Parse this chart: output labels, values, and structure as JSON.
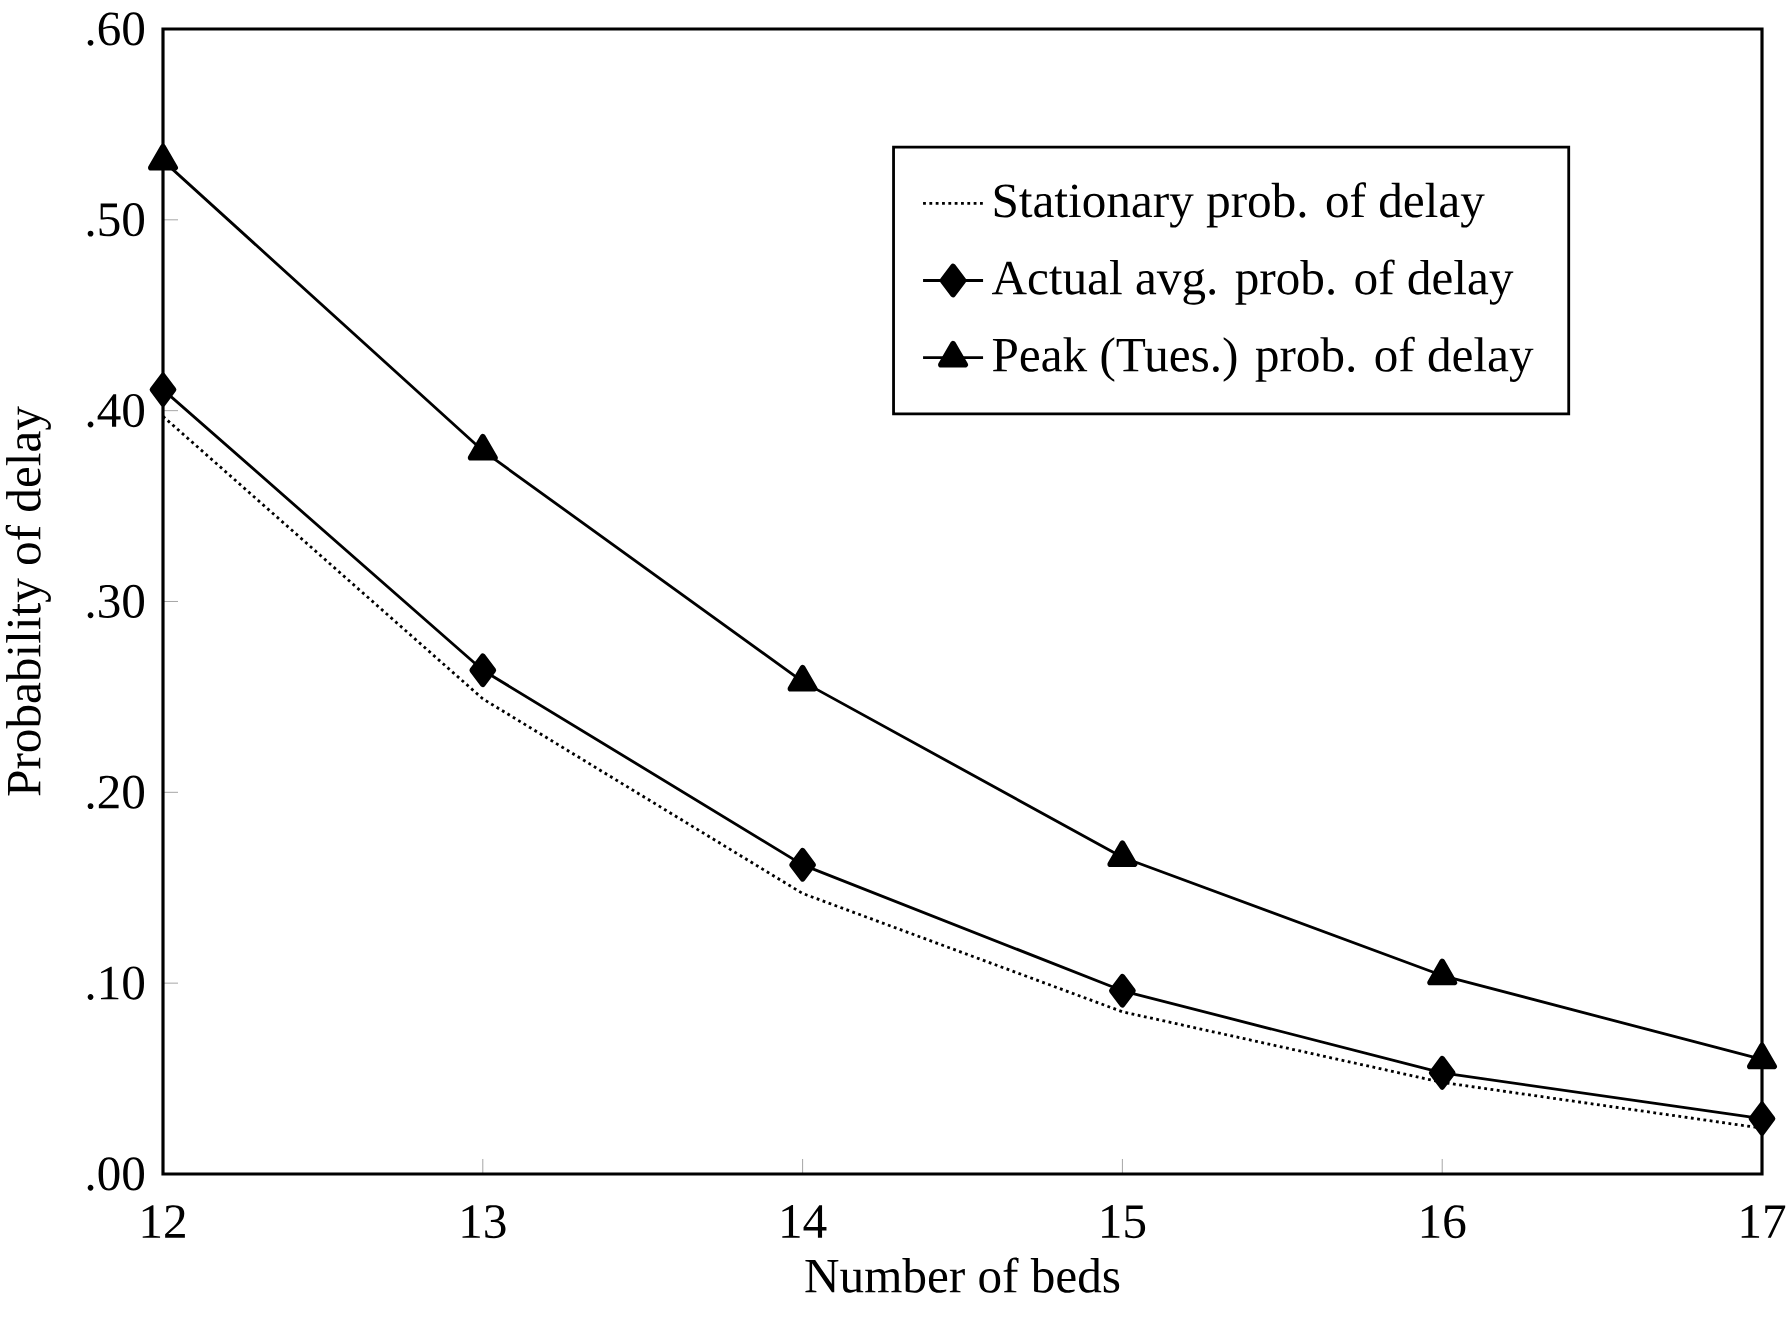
{
  "chart_data": {
    "type": "line",
    "xlabel": "Number of beds",
    "ylabel": "Probability of delay",
    "x": [
      12,
      13,
      14,
      15,
      16,
      17
    ],
    "series": [
      {
        "name": "Stationary prob. of delay",
        "color": "#000000",
        "marker": "none",
        "line_style": "dotted",
        "values": [
          0.397,
          0.249,
          0.147,
          0.085,
          0.048,
          0.024
        ]
      },
      {
        "name": "Actual avg. prob. of delay",
        "color": "#000000",
        "marker": "diamond",
        "line_style": "solid",
        "values": [
          0.411,
          0.264,
          0.162,
          0.096,
          0.053,
          0.029
        ]
      },
      {
        "name": "Peak (Tues.) prob. of delay",
        "color": "#000000",
        "marker": "triangle",
        "line_style": "solid",
        "values": [
          0.531,
          0.379,
          0.258,
          0.166,
          0.104,
          0.06
        ]
      }
    ],
    "xlim": [
      12,
      17
    ],
    "ylim": [
      0,
      0.6
    ],
    "xticks": [
      12,
      13,
      14,
      15,
      16,
      17
    ],
    "yticks": [
      {
        "value": 0,
        "label": ".00"
      },
      {
        "value": 0.1,
        "label": ".10"
      },
      {
        "value": 0.2,
        "label": ".20"
      },
      {
        "value": 0.3,
        "label": ".30"
      },
      {
        "value": 0.4,
        "label": ".40"
      },
      {
        "value": 0.5,
        "label": ".50"
      },
      {
        "value": 0.6,
        "label": ".60"
      }
    ],
    "legend": "top right",
    "grid": false
  }
}
